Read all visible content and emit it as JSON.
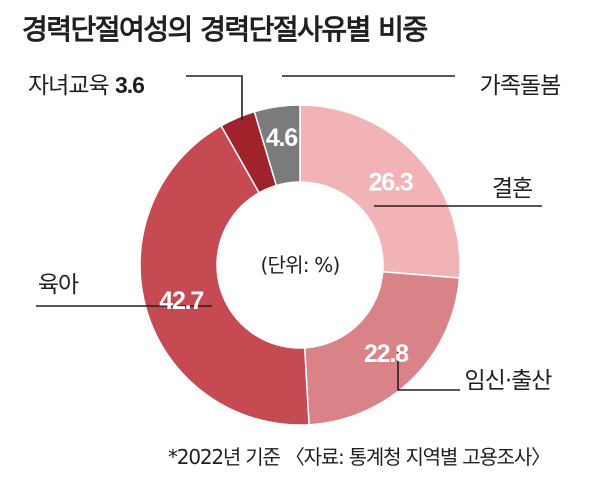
{
  "chart_data": {
    "type": "pie",
    "donut": true,
    "title": "경력단절여성의 경력단절사유별 비중",
    "unit_label": "(단위: %)",
    "footnote": "*2022년 기준 〈자료: 통계청 지역별 고용조사〉",
    "slices": [
      {
        "label": "결혼",
        "value": 26.3,
        "color": "#f2b3b6"
      },
      {
        "label": "임신·출산",
        "value": 22.8,
        "color": "#d98287"
      },
      {
        "label": "육아",
        "value": 42.7,
        "color": "#c64a52"
      },
      {
        "label": "자녀교육",
        "value": 3.6,
        "color": "#a0222b"
      },
      {
        "label": "가족돌봄",
        "value": 4.6,
        "color": "#7b7b7b"
      }
    ]
  }
}
